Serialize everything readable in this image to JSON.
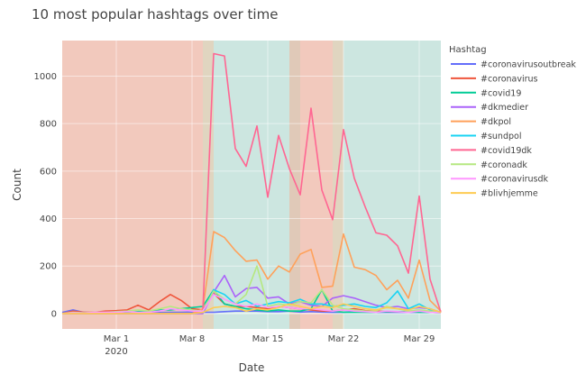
{
  "chart_data": {
    "type": "line",
    "title": "10 most popular hashtags over time",
    "xlabel": "Date",
    "ylabel": "Count",
    "legend_title": "Hashtag",
    "legend_placement": "right",
    "x_start": "2020-02-25",
    "x_end": "2020-03-31",
    "ylim": [
      -65,
      1150
    ],
    "y_ticks": [
      "0",
      "200",
      "400",
      "600",
      "800",
      "1000"
    ],
    "y_tick_values": [
      0,
      200,
      400,
      600,
      800,
      1000
    ],
    "x_ticks": [
      {
        "label": "Mar 1",
        "sub": "2020",
        "date": "2020-03-01"
      },
      {
        "label": "Mar 8",
        "sub": "",
        "date": "2020-03-08"
      },
      {
        "label": "Mar 15",
        "sub": "",
        "date": "2020-03-15"
      },
      {
        "label": "Mar 22",
        "sub": "",
        "date": "2020-03-22"
      },
      {
        "label": "Mar 29",
        "sub": "",
        "date": "2020-03-29"
      }
    ],
    "background_bands": [
      {
        "from": "2020-02-25",
        "to": "2020-03-09",
        "color": "#f2c9bd"
      },
      {
        "from": "2020-03-09",
        "to": "2020-03-10",
        "color": "#e0d5c0"
      },
      {
        "from": "2020-03-10",
        "to": "2020-03-17",
        "color": "#cce6e0"
      },
      {
        "from": "2020-03-17",
        "to": "2020-03-18",
        "color": "#e0c9b8"
      },
      {
        "from": "2020-03-18",
        "to": "2020-03-21",
        "color": "#f2c9bd"
      },
      {
        "from": "2020-03-21",
        "to": "2020-03-22",
        "color": "#e0d5c0"
      },
      {
        "from": "2020-03-22",
        "to": "2020-03-31",
        "color": "#cce6e0"
      }
    ],
    "dates": [
      "2020-02-25",
      "2020-02-26",
      "2020-02-27",
      "2020-02-28",
      "2020-02-29",
      "2020-03-01",
      "2020-03-02",
      "2020-03-03",
      "2020-03-04",
      "2020-03-05",
      "2020-03-06",
      "2020-03-07",
      "2020-03-08",
      "2020-03-09",
      "2020-03-10",
      "2020-03-11",
      "2020-03-12",
      "2020-03-13",
      "2020-03-14",
      "2020-03-15",
      "2020-03-16",
      "2020-03-17",
      "2020-03-18",
      "2020-03-19",
      "2020-03-20",
      "2020-03-21",
      "2020-03-22",
      "2020-03-23",
      "2020-03-24",
      "2020-03-25",
      "2020-03-26",
      "2020-03-27",
      "2020-03-28",
      "2020-03-29",
      "2020-03-30",
      "2020-03-31"
    ],
    "series": [
      {
        "name": "#coronavirusoutbreak",
        "color": "#636efa",
        "values": [
          5,
          15,
          5,
          3,
          2,
          2,
          2,
          3,
          3,
          4,
          5,
          5,
          6,
          5,
          5,
          8,
          10,
          10,
          10,
          8,
          8,
          10,
          6,
          8,
          6,
          5,
          5,
          8,
          6,
          5,
          5,
          5,
          5,
          5,
          5,
          5
        ]
      },
      {
        "name": "#coronavirus",
        "color": "#ef553b",
        "values": [
          0,
          10,
          5,
          5,
          10,
          12,
          15,
          35,
          15,
          50,
          80,
          55,
          20,
          15,
          85,
          40,
          30,
          30,
          25,
          20,
          30,
          25,
          20,
          15,
          10,
          10,
          15,
          20,
          12,
          10,
          8,
          8,
          8,
          10,
          8,
          5
        ]
      },
      {
        "name": "#covid19",
        "color": "#00cc96",
        "values": [
          0,
          2,
          2,
          3,
          3,
          5,
          5,
          8,
          10,
          15,
          15,
          20,
          25,
          30,
          100,
          40,
          30,
          20,
          15,
          10,
          15,
          10,
          10,
          20,
          100,
          10,
          5,
          5,
          5,
          5,
          8,
          8,
          8,
          5,
          5,
          3
        ]
      },
      {
        "name": "#dkmedier",
        "color": "#ab63fa",
        "values": [
          0,
          0,
          0,
          0,
          0,
          0,
          0,
          0,
          0,
          0,
          0,
          0,
          0,
          0,
          90,
          160,
          70,
          105,
          110,
          65,
          70,
          40,
          50,
          35,
          30,
          65,
          75,
          65,
          50,
          35,
          25,
          30,
          20,
          25,
          20,
          5
        ]
      },
      {
        "name": "#dkpol",
        "color": "#ffa15a",
        "values": [
          0,
          0,
          0,
          0,
          0,
          0,
          0,
          0,
          0,
          0,
          0,
          0,
          0,
          20,
          345,
          320,
          265,
          220,
          225,
          145,
          200,
          175,
          250,
          270,
          110,
          115,
          335,
          195,
          185,
          160,
          100,
          140,
          65,
          225,
          55,
          10
        ]
      },
      {
        "name": "#sundpol",
        "color": "#19d3f3",
        "values": [
          0,
          0,
          0,
          0,
          0,
          0,
          0,
          0,
          0,
          0,
          0,
          0,
          0,
          5,
          100,
          80,
          40,
          55,
          30,
          40,
          50,
          45,
          60,
          40,
          40,
          30,
          35,
          40,
          30,
          25,
          45,
          95,
          20,
          40,
          15,
          5
        ]
      },
      {
        "name": "#covid19dk",
        "color": "#ff6692",
        "values": [
          0,
          0,
          0,
          0,
          0,
          0,
          0,
          0,
          0,
          0,
          0,
          0,
          0,
          10,
          1095,
          1085,
          695,
          620,
          790,
          490,
          750,
          610,
          500,
          865,
          520,
          395,
          775,
          570,
          450,
          340,
          330,
          285,
          170,
          495,
          145,
          5
        ]
      },
      {
        "name": "#coronadk",
        "color": "#b6e880",
        "values": [
          0,
          5,
          3,
          5,
          5,
          8,
          10,
          15,
          10,
          20,
          30,
          20,
          15,
          10,
          95,
          60,
          40,
          80,
          200,
          30,
          40,
          35,
          50,
          45,
          100,
          35,
          20,
          15,
          10,
          10,
          30,
          20,
          10,
          15,
          10,
          5
        ]
      },
      {
        "name": "#coronavirusdk",
        "color": "#ff97ff",
        "values": [
          0,
          3,
          2,
          5,
          5,
          5,
          8,
          5,
          5,
          10,
          20,
          15,
          10,
          10,
          80,
          60,
          40,
          30,
          40,
          25,
          30,
          25,
          20,
          20,
          15,
          10,
          15,
          10,
          8,
          5,
          10,
          8,
          5,
          10,
          5,
          3
        ]
      },
      {
        "name": "#blivhjemme",
        "color": "#fecb52",
        "values": [
          0,
          0,
          0,
          0,
          0,
          0,
          0,
          0,
          0,
          0,
          0,
          0,
          0,
          5,
          25,
          30,
          25,
          10,
          20,
          15,
          25,
          40,
          30,
          20,
          30,
          25,
          40,
          30,
          20,
          15,
          25,
          20,
          15,
          30,
          20,
          5
        ]
      }
    ]
  }
}
